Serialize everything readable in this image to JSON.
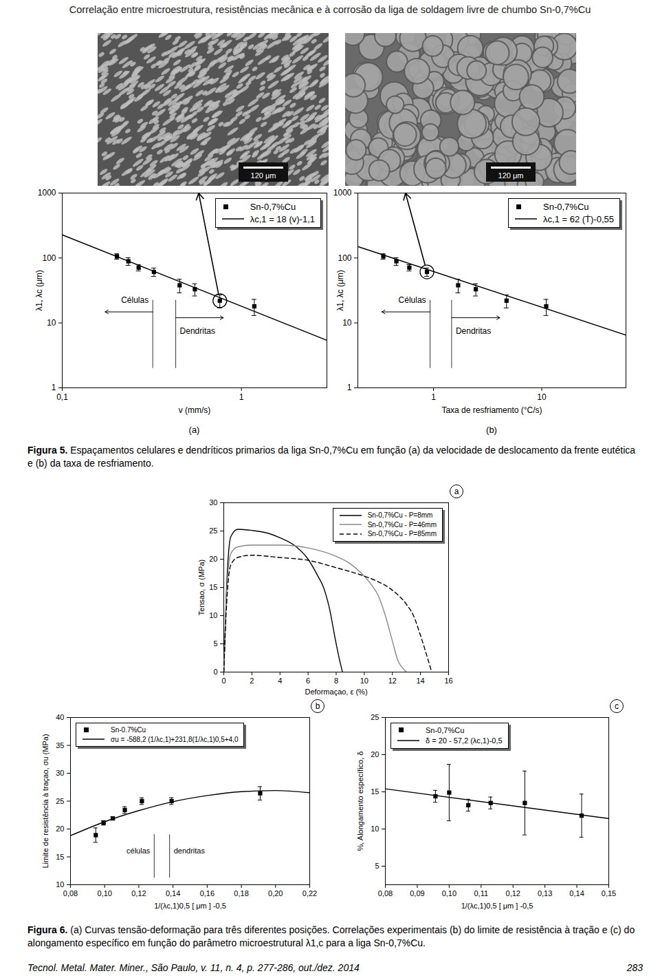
{
  "header": "Correlação entre microestrutura, resistências mecânica e à corrosão da liga de soldagem livre de chumbo Sn-0,7%Cu",
  "images": [
    {
      "scale_bar": "120 μm"
    },
    {
      "scale_bar": "120 μm"
    }
  ],
  "chart_data": [
    {
      "type": "scatter",
      "panel": "(a)",
      "log": true,
      "x_label": "v (mm/s)",
      "y_label": "λ1, λc (μm)",
      "xlim": [
        0.1,
        3
      ],
      "xticks": [
        {
          "value": 0.1,
          "label": "0,1"
        },
        1
      ],
      "ylim": [
        1,
        1000
      ],
      "yticks": [
        1,
        10,
        100,
        1000
      ],
      "legend": "top-right",
      "series": [
        {
          "name": "Sn-0,7%Cu",
          "type": "scatter",
          "marker": "square",
          "color": "#000000",
          "x": [
            0.202,
            0.234,
            0.267,
            0.325,
            0.452,
            0.55,
            0.758,
            1.18
          ],
          "values": [
            106,
            89,
            71,
            61,
            38,
            33,
            22,
            18
          ],
          "errors": [
            10,
            12,
            8,
            9,
            9,
            7,
            5,
            5
          ],
          "marked": 6
        },
        {
          "name": "λc,1 = 18 (v)-1,1",
          "type": "line",
          "line_style": "solid",
          "color": "#000000",
          "x": [
            0.1,
            3
          ],
          "values": [
            227,
            5.4
          ]
        }
      ],
      "annotations": [
        {
          "text": "Células",
          "x": 0.32
        },
        {
          "text": "Dendritas",
          "x": 0.43
        }
      ]
    },
    {
      "type": "scatter",
      "panel": "(b)",
      "log": true,
      "x_label": "Taxa de resfriamento (°C/s)",
      "y_label": "λ1, λc (μm)",
      "xlim": [
        0.2,
        60
      ],
      "xticks": [
        1,
        10
      ],
      "ylim": [
        1,
        1000
      ],
      "yticks": [
        1,
        10,
        100,
        1000
      ],
      "legend": "top-right",
      "series": [
        {
          "name": "Sn-0,7%Cu",
          "type": "scatter",
          "marker": "square",
          "color": "#000000",
          "x": [
            0.344,
            0.454,
            0.598,
            0.87,
            1.69,
            2.46,
            4.73,
            11.0
          ],
          "values": [
            106,
            89,
            71,
            61,
            38,
            33,
            22,
            18
          ],
          "errors": [
            10,
            12,
            8,
            9,
            9,
            7,
            5,
            5
          ],
          "marked": 3
        },
        {
          "name": "λc,1 = 62 (Ṫ)-0,55",
          "type": "line",
          "line_style": "solid",
          "color": "#000000",
          "x": [
            0.2,
            60
          ],
          "values": [
            150,
            6.5
          ]
        }
      ],
      "annotations": [
        {
          "text": "Células",
          "x": 0.93
        },
        {
          "text": "Dendritas",
          "x": 1.47
        }
      ]
    },
    {
      "type": "line",
      "panel": "a",
      "x_label": "Deformaçao, ε (%)",
      "y_label": "Tensao, σ (MPa)",
      "xlim": [
        0,
        16
      ],
      "xticks": [
        0,
        2,
        4,
        6,
        8,
        10,
        12,
        14,
        16
      ],
      "ylim": [
        0,
        30
      ],
      "yticks": [
        0,
        5,
        10,
        15,
        20,
        25,
        30
      ],
      "legend": "top-right",
      "series": [
        {
          "name": "Sn-0,7%Cu - P=8mm",
          "line_style": "solid",
          "color": "#000000",
          "x": [
            0,
            0.2,
            0.5,
            1,
            2,
            3,
            4,
            5,
            6,
            6.7,
            7.1,
            7.5,
            8,
            8.3,
            8.45
          ],
          "values": [
            0,
            15,
            24,
            25.3,
            25.1,
            24.7,
            23.8,
            22.5,
            20,
            17,
            15,
            11.5,
            5,
            1.5,
            0
          ]
        },
        {
          "name": "Sn-0,7%Cu - P=46mm",
          "line_style": "solid",
          "color": "#888888",
          "x": [
            0,
            0.2,
            0.5,
            1,
            2,
            4,
            6,
            8,
            9,
            9.8,
            10.5,
            11,
            11.5,
            12,
            12.4,
            12.7,
            13
          ],
          "values": [
            0,
            14,
            21,
            22.2,
            22.5,
            22.5,
            22,
            20.5,
            19.2,
            17.5,
            15.5,
            13.5,
            10,
            5.5,
            2,
            0.8,
            0
          ]
        },
        {
          "name": "Sn-0,7%Cu - P=85mm",
          "line_style": "dashed",
          "color": "#000000",
          "x": [
            0,
            0.2,
            0.5,
            1,
            2,
            4,
            6,
            8,
            10,
            11,
            12,
            13,
            13.5,
            14,
            14.5,
            14.8
          ],
          "values": [
            0,
            12,
            19,
            20.3,
            20.7,
            20.3,
            19.8,
            18.5,
            17,
            16,
            14.5,
            12,
            10,
            6.5,
            2.5,
            0
          ]
        }
      ]
    },
    {
      "type": "scatter",
      "panel": "b",
      "x_label": "1/(λc,1)0,5 [ μm ] -0,5",
      "y_label": "Limite de resistência à traçao, σu (MPa)",
      "xlim": [
        0.08,
        0.22
      ],
      "xticks": [
        {
          "value": 0.08,
          "label": "0,08"
        },
        {
          "value": 0.1,
          "label": "0,10"
        },
        {
          "value": 0.12,
          "label": "0,12"
        },
        {
          "value": 0.14,
          "label": "0,14"
        },
        {
          "value": 0.16,
          "label": "0,16"
        },
        {
          "value": 0.18,
          "label": "0,18"
        },
        {
          "value": 0.2,
          "label": "0,20"
        },
        {
          "value": 0.22,
          "label": "0,22"
        }
      ],
      "ylim": [
        10,
        40
      ],
      "yticks": [
        10,
        15,
        20,
        25,
        30,
        35,
        40
      ],
      "legend": "top-left",
      "series": [
        {
          "name": "Sn-0.7%Cu",
          "type": "scatter",
          "marker": "square",
          "color": "#000000",
          "x": [
            0.0948,
            0.0994,
            0.1048,
            0.1118,
            0.1218,
            0.1392,
            0.191
          ],
          "values": [
            18.9,
            21.1,
            21.9,
            23.4,
            25.0,
            25.0,
            26.4
          ],
          "errors": [
            1.3,
            0.4,
            0.3,
            0.6,
            0.6,
            0.6,
            1.2
          ]
        },
        {
          "name": "σu = -588,2 (1/λc,1)+231,8(1/λc,1)0,5+4,0",
          "type": "line",
          "line_style": "solid",
          "color": "#000000",
          "x": [
            0.08,
            0.1,
            0.12,
            0.14,
            0.16,
            0.18,
            0.2,
            0.22
          ],
          "values": [
            18.8,
            21.3,
            23.3,
            24.9,
            26.0,
            26.7,
            26.9,
            26.5
          ]
        }
      ],
      "annotations": [
        {
          "text": "células",
          "x": 0.129
        },
        {
          "text": "dendritas",
          "x": 0.138
        }
      ]
    },
    {
      "type": "scatter",
      "panel": "c",
      "x_label": "1/(λc,1)0,5 [ μm ] -0,5",
      "y_label": "%, Alongamento específico, δ",
      "xlim": [
        0.08,
        0.15
      ],
      "xticks": [
        {
          "value": 0.08,
          "label": "0,08"
        },
        {
          "value": 0.09,
          "label": "0,09"
        },
        {
          "value": 0.1,
          "label": "0,10"
        },
        {
          "value": 0.11,
          "label": "0,11"
        },
        {
          "value": 0.12,
          "label": "0,12"
        },
        {
          "value": 0.13,
          "label": "0,13"
        },
        {
          "value": 0.14,
          "label": "0,14"
        },
        {
          "value": 0.15,
          "label": "0,15"
        }
      ],
      "ylim": [
        2.5,
        25
      ],
      "yticks": [
        5,
        10,
        15,
        20,
        25
      ],
      "legend": "top-left",
      "series": [
        {
          "name": "Sn-0,7%Cu",
          "type": "scatter",
          "marker": "square",
          "color": "#000000",
          "x": [
            0.0957,
            0.1,
            0.106,
            0.113,
            0.1237,
            0.1415
          ],
          "values": [
            14.4,
            14.9,
            13.2,
            13.5,
            13.5,
            11.8
          ],
          "errors": [
            0.8,
            3.8,
            0.8,
            0.8,
            4.3,
            2.9
          ]
        },
        {
          "name": "δ = 20 - 57,2 (λc,1)-0,5",
          "type": "line",
          "line_style": "solid",
          "color": "#000000",
          "x": [
            0.08,
            0.15
          ],
          "values": [
            15.4,
            11.4
          ]
        }
      ]
    }
  ],
  "captions": [
    {
      "label": "Figura 5.",
      "text": "Espaçamentos celulares e dendríticos primarios da liga Sn-0,7%Cu em função (a) da velocidade de deslocamento da frente eutética e (b) da taxa de resfriamento."
    },
    {
      "label": "Figura 6.",
      "text": "(a) Curvas tensão-deformação para três diferentes posições. Correlações experimentais (b) do limite de resistência à tração e (c) do alongamento específico em função do parâmetro microestrutural λ1,c para a liga Sn-0,7%Cu."
    }
  ],
  "footer": {
    "journal": "Tecnol. Metal. Mater. Miner., São Paulo, v. 11, n. 4, p. 277-286, out./dez. 2014",
    "page": "283"
  }
}
